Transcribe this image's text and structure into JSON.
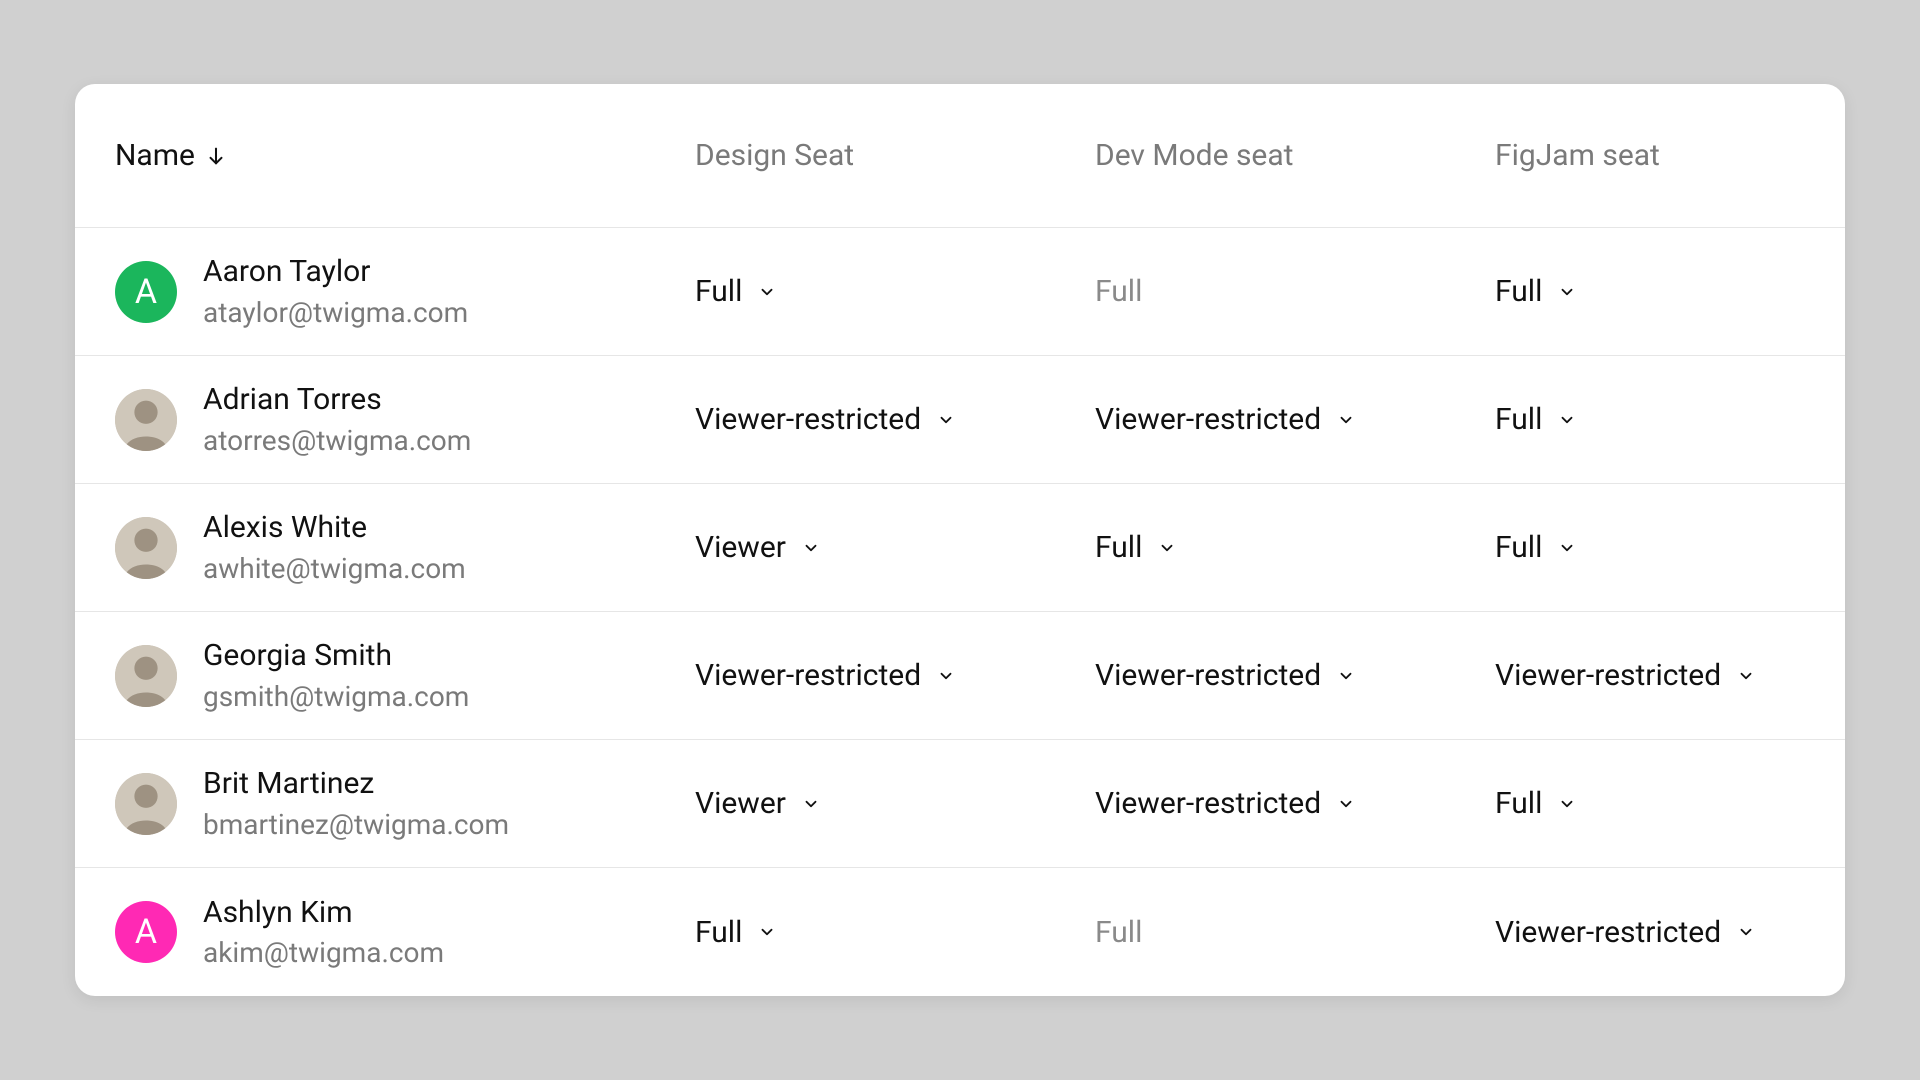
{
  "colors": {
    "page_bg": "#d0d0d0",
    "card_bg": "#ffffff",
    "border": "#e6e6e6",
    "text_primary": "#111111",
    "text_secondary": "#7a7a7a",
    "disabled": "#8a8a8a",
    "avatar_green": "#1bb65c",
    "avatar_pink": "#ff29b4",
    "photo_placeholder": "#c8c0b4"
  },
  "header": {
    "name": "Name",
    "design_seat": "Design Seat",
    "dev_mode_seat": "Dev Mode seat",
    "figjam_seat": "FigJam seat",
    "sort_direction": "down"
  },
  "rows": [
    {
      "name": "Aaron Taylor",
      "email": "ataylor@twigma.com",
      "avatar": {
        "type": "letter",
        "letter": "A",
        "bg": "#1bb65c"
      },
      "design_seat": {
        "value": "Full",
        "editable": true
      },
      "dev_mode_seat": {
        "value": "Full",
        "editable": false
      },
      "figjam_seat": {
        "value": "Full",
        "editable": true
      }
    },
    {
      "name": "Adrian Torres",
      "email": "atorres@twigma.com",
      "avatar": {
        "type": "photo"
      },
      "design_seat": {
        "value": "Viewer-restricted",
        "editable": true
      },
      "dev_mode_seat": {
        "value": "Viewer-restricted",
        "editable": true
      },
      "figjam_seat": {
        "value": "Full",
        "editable": true
      }
    },
    {
      "name": "Alexis White",
      "email": "awhite@twigma.com",
      "avatar": {
        "type": "photo"
      },
      "design_seat": {
        "value": "Viewer",
        "editable": true
      },
      "dev_mode_seat": {
        "value": "Full",
        "editable": true
      },
      "figjam_seat": {
        "value": "Full",
        "editable": true
      }
    },
    {
      "name": "Georgia Smith",
      "email": "gsmith@twigma.com",
      "avatar": {
        "type": "photo"
      },
      "design_seat": {
        "value": "Viewer-restricted",
        "editable": true
      },
      "dev_mode_seat": {
        "value": "Viewer-restricted",
        "editable": true
      },
      "figjam_seat": {
        "value": "Viewer-restricted",
        "editable": true
      }
    },
    {
      "name": "Brit Martinez",
      "email": "bmartinez@twigma.com",
      "avatar": {
        "type": "photo"
      },
      "design_seat": {
        "value": "Viewer",
        "editable": true
      },
      "dev_mode_seat": {
        "value": "Viewer-restricted",
        "editable": true
      },
      "figjam_seat": {
        "value": "Full",
        "editable": true
      }
    },
    {
      "name": "Ashlyn Kim",
      "email": "akim@twigma.com",
      "avatar": {
        "type": "letter",
        "letter": "A",
        "bg": "#ff29b4"
      },
      "design_seat": {
        "value": "Full",
        "editable": true
      },
      "dev_mode_seat": {
        "value": "Full",
        "editable": false
      },
      "figjam_seat": {
        "value": "Viewer-restricted",
        "editable": true
      }
    }
  ]
}
